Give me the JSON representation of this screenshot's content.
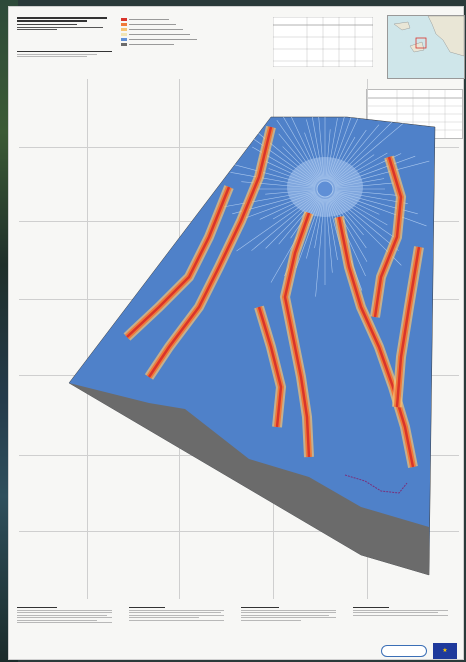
{
  "header": {
    "title_lines": [],
    "sub_lines": []
  },
  "legend": {
    "rows": [
      {
        "color": "#d9342b",
        "icon": "hazard-high-icon"
      },
      {
        "color": "#f07a3a",
        "icon": "hazard-medium-icon"
      },
      {
        "color": "#f6c575",
        "icon": "hazard-low-icon"
      },
      {
        "color": "#f1e5b5",
        "icon": "hazard-verylow-icon"
      },
      {
        "color": "#5f8fd6",
        "icon": "area-icon"
      },
      {
        "color": "#6b6b6b",
        "icon": "sea-icon"
      }
    ]
  },
  "map": {
    "colors": {
      "background": "#4f81c9",
      "hazard_high": "#d9342b",
      "hazard_medium": "#f07a3a",
      "hazard_low": "#f6c575",
      "crater": "#a9c7ee",
      "sea": "#6b6b6b"
    }
  },
  "footer": {
    "columns": 4
  },
  "branding": {
    "eu_flag": "eu-flag-icon",
    "logo": "copernicus-logo"
  }
}
